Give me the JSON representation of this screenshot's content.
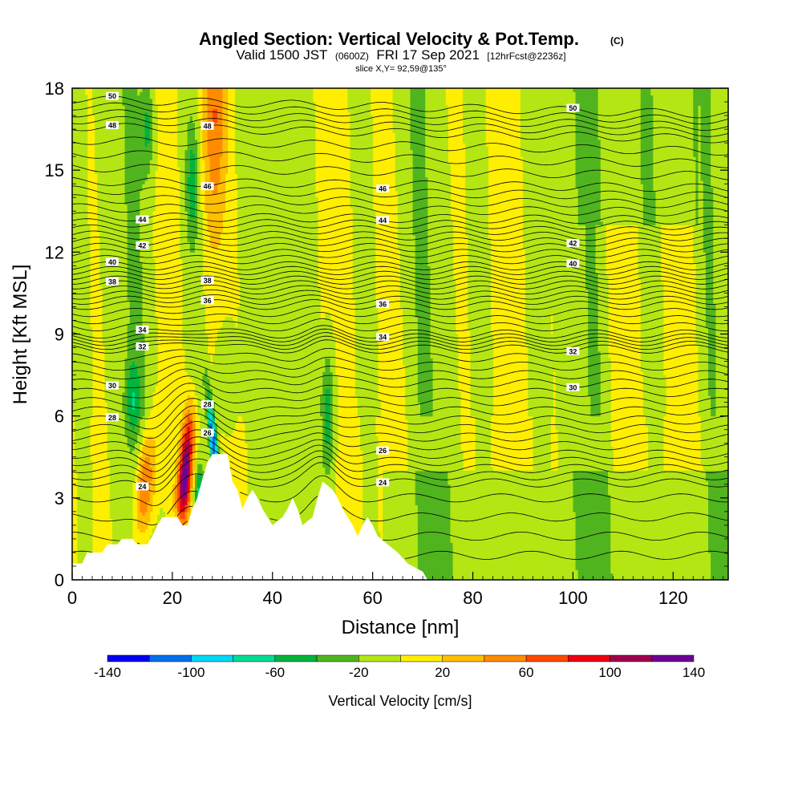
{
  "title": {
    "main": "Angled Section: Vertical Velocity & Pot.Temp.",
    "main_suffix": "(C)",
    "valid_a": "Valid 1500 JST",
    "valid_b": "(0600Z)",
    "valid_c": "FRI 17 Sep 2021",
    "valid_d": "[12hrFcst@2236z]",
    "slice": "slice X,Y= 92,59@135°"
  },
  "chart_data": {
    "type": "heatmap",
    "xlabel": "Distance [nm]",
    "ylabel": "Height [Kft MSL]",
    "xlim": [
      0,
      131
    ],
    "ylim": [
      0,
      18
    ],
    "x_ticks": [
      "0",
      "20",
      "40",
      "60",
      "80",
      "100",
      "120"
    ],
    "y_ticks": [
      "0",
      "3",
      "6",
      "9",
      "12",
      "15",
      "18"
    ],
    "colorbar": {
      "title": "Vertical Velocity [cm/s]",
      "labels": [
        "-140",
        "-100",
        "-60",
        "-20",
        "20",
        "60",
        "100",
        "140"
      ],
      "bounds": [
        -140,
        -120,
        -100,
        -80,
        -60,
        -40,
        -20,
        0,
        20,
        40,
        60,
        80,
        100,
        120,
        140
      ],
      "colors": [
        "#0000f0",
        "#0070ee",
        "#00d8f8",
        "#00dc96",
        "#00b43c",
        "#50b41e",
        "#b4e614",
        "#ffee00",
        "#ffbe00",
        "#ff8c00",
        "#ff4a00",
        "#ee0010",
        "#a0004c",
        "#6e0096"
      ]
    },
    "terrain_kft": [
      [
        0,
        0.6
      ],
      [
        2,
        0.6
      ],
      [
        3,
        1.0
      ],
      [
        6,
        1.0
      ],
      [
        7,
        1.3
      ],
      [
        9,
        1.3
      ],
      [
        10,
        1.5
      ],
      [
        12,
        1.5
      ],
      [
        13,
        1.3
      ],
      [
        15,
        1.3
      ],
      [
        16,
        1.6
      ],
      [
        17,
        2.0
      ],
      [
        18,
        2.3
      ],
      [
        21,
        2.3
      ],
      [
        22,
        2.0
      ],
      [
        23,
        2.0
      ],
      [
        24,
        2.6
      ],
      [
        25,
        3.0
      ],
      [
        26,
        3.7
      ],
      [
        27,
        4.3
      ],
      [
        28,
        4.6
      ],
      [
        31,
        4.6
      ],
      [
        32,
        3.6
      ],
      [
        33,
        3.3
      ],
      [
        34,
        2.6
      ],
      [
        35,
        3.0
      ],
      [
        36,
        3.3
      ],
      [
        37,
        3.0
      ],
      [
        38,
        2.6
      ],
      [
        39,
        2.3
      ],
      [
        40,
        2.0
      ],
      [
        42,
        2.3
      ],
      [
        43,
        2.6
      ],
      [
        44,
        3.0
      ],
      [
        45,
        2.6
      ],
      [
        46,
        2.0
      ],
      [
        48,
        2.3
      ],
      [
        49,
        3.0
      ],
      [
        50,
        3.6
      ],
      [
        52,
        3.3
      ],
      [
        53,
        3.0
      ],
      [
        54,
        2.6
      ],
      [
        55,
        2.3
      ],
      [
        56,
        2.0
      ],
      [
        57,
        1.6
      ],
      [
        58,
        2.0
      ],
      [
        59,
        2.3
      ],
      [
        60,
        2.0
      ],
      [
        61,
        1.6
      ],
      [
        63,
        1.3
      ],
      [
        65,
        1.0
      ],
      [
        67,
        0.6
      ],
      [
        70,
        0.3
      ],
      [
        71,
        0.0
      ],
      [
        131,
        0.0
      ]
    ],
    "theta_contours": [
      {
        "label": "24",
        "base_kft": 3.55
      },
      {
        "label": "26",
        "base_kft": 4.6
      },
      {
        "label": "28",
        "base_kft": 5.85
      },
      {
        "label": "30",
        "base_kft": 7.2
      },
      {
        "label": "32",
        "base_kft": 8.45
      },
      {
        "label": "34",
        "base_kft": 9.0
      },
      {
        "label": "36",
        "base_kft": 10.05
      },
      {
        "label": "38",
        "base_kft": 10.8
      },
      {
        "label": "40",
        "base_kft": 11.5
      },
      {
        "label": "42",
        "base_kft": 12.4
      },
      {
        "label": "44",
        "base_kft": 13.3
      },
      {
        "label": "46",
        "base_kft": 14.6
      },
      {
        "label": "48",
        "base_kft": 16.6
      },
      {
        "label": "50",
        "base_kft": 17.6
      }
    ],
    "velocity_features": [
      {
        "x": 14.5,
        "y": 3.4,
        "sx": 1.3,
        "sy": 1.4,
        "v": 75,
        "tilt": 0.35
      },
      {
        "x": 23,
        "y": 4.6,
        "sx": 0.9,
        "sy": 1.3,
        "v": 105,
        "tilt": 0.3
      },
      {
        "x": 22,
        "y": 3.2,
        "sx": 1.0,
        "sy": 0.9,
        "v": 65,
        "tilt": 0.2
      },
      {
        "x": 28.3,
        "y": 4.8,
        "sx": 0.55,
        "sy": 1.5,
        "v": -125,
        "tilt": -0.55
      },
      {
        "x": 25.5,
        "y": 3.0,
        "sx": 0.8,
        "sy": 0.8,
        "v": -70,
        "tilt": 0.0
      },
      {
        "x": 28.5,
        "y": 17.0,
        "sx": 1.5,
        "sy": 3.0,
        "v": 55,
        "tilt": 0.0
      },
      {
        "x": 51,
        "y": 6.0,
        "sx": 0.9,
        "sy": 1.8,
        "v": -55,
        "tilt": 0.0
      },
      {
        "x": 15,
        "y": 16.5,
        "sx": 0.9,
        "sy": 1.3,
        "v": -45,
        "tilt": 0.0
      },
      {
        "x": 24,
        "y": 14.5,
        "sx": 0.8,
        "sy": 1.4,
        "v": -45,
        "tilt": 0.0
      },
      {
        "x": 12,
        "y": 6.5,
        "sx": 1.2,
        "sy": 1.1,
        "v": -40,
        "tilt": 0.0
      },
      {
        "x": 31,
        "y": 7.5,
        "sx": 1.8,
        "sy": 1.3,
        "v": -25,
        "tilt": 0.0
      }
    ]
  },
  "colors": {
    "background": "#ffffff",
    "neutral_fill": "#ffee00",
    "light_green": "#b4e614",
    "terrain": "#ffffff",
    "contour": "#000000"
  }
}
